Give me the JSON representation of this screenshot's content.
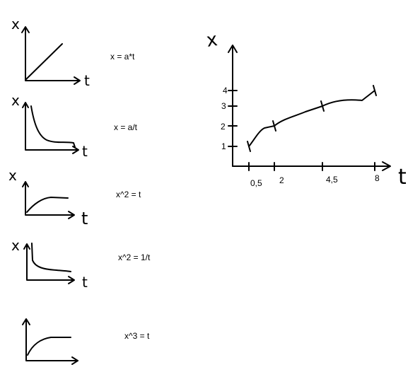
{
  "formulas": {
    "f1": "x = a*t",
    "f2": "x = a/t",
    "f3": "x^2 = t",
    "f4": "x^2 = 1/t",
    "f5": "x^3 = t"
  },
  "axis_x": "x",
  "axis_t": "t",
  "x_tick_labels": [
    "1",
    "2",
    "3",
    "4"
  ],
  "t_tick_labels": [
    "0,5",
    "2",
    "4,5",
    "8"
  ],
  "chart_data": {
    "type": "line",
    "title": "",
    "xlabel": "t",
    "ylabel": "x",
    "x": [
      0.5,
      2,
      4.5,
      8
    ],
    "y": [
      1,
      2,
      3,
      4
    ],
    "grid": false
  }
}
